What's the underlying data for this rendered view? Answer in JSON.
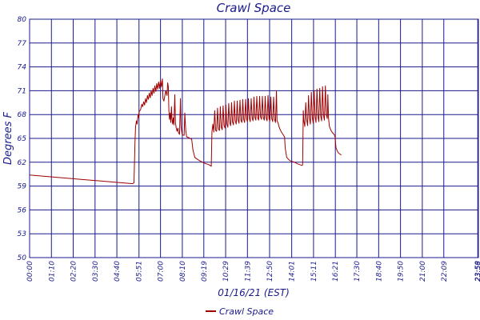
{
  "chart_data": {
    "type": "line",
    "title": "Crawl Space",
    "xlabel": "01/16/21 (EST)",
    "ylabel": "Degrees F",
    "ylim": [
      50,
      80
    ],
    "yticks": [
      "50",
      "53",
      "56",
      "59",
      "62",
      "65",
      "68",
      "71",
      "74",
      "77",
      "80"
    ],
    "xlim": [
      0,
      1440
    ],
    "xticks": [
      {
        "minute": 0,
        "label": "00:00"
      },
      {
        "minute": 70,
        "label": "01:10"
      },
      {
        "minute": 140,
        "label": "02:20"
      },
      {
        "minute": 210,
        "label": "03:30"
      },
      {
        "minute": 280,
        "label": "04:40"
      },
      {
        "minute": 351,
        "label": "05:51"
      },
      {
        "minute": 420,
        "label": "07:00"
      },
      {
        "minute": 490,
        "label": "08:10"
      },
      {
        "minute": 559,
        "label": "09:19"
      },
      {
        "minute": 629,
        "label": "10:29"
      },
      {
        "minute": 699,
        "label": "11:39"
      },
      {
        "minute": 770,
        "label": "12:50"
      },
      {
        "minute": 841,
        "label": "14:01"
      },
      {
        "minute": 911,
        "label": "15:11"
      },
      {
        "minute": 981,
        "label": "16:21"
      },
      {
        "minute": 1050,
        "label": "17:30"
      },
      {
        "minute": 1120,
        "label": "18:40"
      },
      {
        "minute": 1190,
        "label": "19:50"
      },
      {
        "minute": 1260,
        "label": "21:00"
      },
      {
        "minute": 1329,
        "label": "22:09"
      },
      {
        "minute": 1438,
        "label": "23:58"
      },
      {
        "minute": 1439,
        "label": "23:59"
      }
    ],
    "grid": true,
    "legend_position": "bottom",
    "series": [
      {
        "name": "Crawl Space",
        "color": "#a00000",
        "points": [
          [
            0,
            60.4
          ],
          [
            60,
            60.2
          ],
          [
            120,
            60.0
          ],
          [
            180,
            59.8
          ],
          [
            240,
            59.6
          ],
          [
            300,
            59.4
          ],
          [
            330,
            59.3
          ],
          [
            335,
            59.4
          ],
          [
            338,
            64.5
          ],
          [
            340,
            66.5
          ],
          [
            343,
            67.2
          ],
          [
            345,
            66.8
          ],
          [
            348,
            68.0
          ],
          [
            350,
            67.6
          ],
          [
            352,
            68.4
          ],
          [
            356,
            68.6
          ],
          [
            360,
            69.3
          ],
          [
            363,
            69.0
          ],
          [
            366,
            69.6
          ],
          [
            369,
            69.2
          ],
          [
            372,
            70.0
          ],
          [
            375,
            69.5
          ],
          [
            378,
            70.4
          ],
          [
            381,
            69.9
          ],
          [
            384,
            70.7
          ],
          [
            387,
            70.1
          ],
          [
            390,
            71.0
          ],
          [
            393,
            70.4
          ],
          [
            396,
            71.3
          ],
          [
            399,
            70.7
          ],
          [
            402,
            71.6
          ],
          [
            405,
            70.9
          ],
          [
            408,
            71.9
          ],
          [
            411,
            71.2
          ],
          [
            414,
            72.1
          ],
          [
            417,
            71.3
          ],
          [
            420,
            72.3
          ],
          [
            423,
            71.5
          ],
          [
            426,
            72.5
          ],
          [
            428,
            70.0
          ],
          [
            431,
            69.7
          ],
          [
            434,
            70.4
          ],
          [
            437,
            71.0
          ],
          [
            441,
            70.4
          ],
          [
            443,
            72.0
          ],
          [
            445,
            71.5
          ],
          [
            447,
            68.5
          ],
          [
            449,
            67.4
          ],
          [
            451,
            68.2
          ],
          [
            453,
            67.0
          ],
          [
            455,
            69.0
          ],
          [
            457,
            67.5
          ],
          [
            459,
            66.8
          ],
          [
            461,
            67.6
          ],
          [
            463,
            66.7
          ],
          [
            466,
            70.5
          ],
          [
            468,
            67.0
          ],
          [
            470,
            66.4
          ],
          [
            473,
            65.9
          ],
          [
            476,
            66.3
          ],
          [
            478,
            65.7
          ],
          [
            481,
            65.5
          ],
          [
            484,
            70.0
          ],
          [
            486,
            66.5
          ],
          [
            489,
            65.6
          ],
          [
            492,
            65.4
          ],
          [
            496,
            65.4
          ],
          [
            498,
            68.2
          ],
          [
            501,
            66.0
          ],
          [
            504,
            65.2
          ],
          [
            510,
            65.1
          ],
          [
            520,
            64.9
          ],
          [
            524,
            63.6
          ],
          [
            530,
            62.6
          ],
          [
            545,
            62.2
          ],
          [
            560,
            61.9
          ],
          [
            575,
            61.7
          ],
          [
            583,
            61.5
          ],
          [
            585,
            65.8
          ],
          [
            588,
            66.8
          ],
          [
            591,
            65.8
          ],
          [
            594,
            68.5
          ],
          [
            597,
            66.0
          ],
          [
            600,
            65.9
          ],
          [
            603,
            68.8
          ],
          [
            606,
            66.2
          ],
          [
            609,
            66.0
          ],
          [
            612,
            69.0
          ],
          [
            615,
            66.4
          ],
          [
            618,
            66.1
          ],
          [
            621,
            69.1
          ],
          [
            624,
            66.6
          ],
          [
            627,
            66.3
          ],
          [
            630,
            69.2
          ],
          [
            633,
            66.8
          ],
          [
            636,
            66.4
          ],
          [
            639,
            69.4
          ],
          [
            642,
            67.0
          ],
          [
            645,
            66.6
          ],
          [
            648,
            69.5
          ],
          [
            651,
            67.1
          ],
          [
            654,
            66.7
          ],
          [
            657,
            69.7
          ],
          [
            660,
            67.2
          ],
          [
            663,
            66.8
          ],
          [
            666,
            69.7
          ],
          [
            669,
            67.3
          ],
          [
            672,
            66.9
          ],
          [
            675,
            69.8
          ],
          [
            678,
            67.3
          ],
          [
            681,
            67.0
          ],
          [
            684,
            69.9
          ],
          [
            687,
            67.4
          ],
          [
            690,
            67.0
          ],
          [
            693,
            69.9
          ],
          [
            696,
            67.5
          ],
          [
            699,
            67.1
          ],
          [
            702,
            70.0
          ],
          [
            705,
            67.5
          ],
          [
            708,
            67.1
          ],
          [
            711,
            70.0
          ],
          [
            714,
            67.6
          ],
          [
            717,
            67.2
          ],
          [
            720,
            70.2
          ],
          [
            723,
            67.6
          ],
          [
            726,
            67.3
          ],
          [
            729,
            70.3
          ],
          [
            732,
            67.6
          ],
          [
            735,
            67.3
          ],
          [
            738,
            70.3
          ],
          [
            741,
            67.7
          ],
          [
            744,
            67.4
          ],
          [
            747,
            70.3
          ],
          [
            750,
            67.6
          ],
          [
            753,
            67.3
          ],
          [
            756,
            70.3
          ],
          [
            759,
            67.6
          ],
          [
            762,
            67.2
          ],
          [
            765,
            70.4
          ],
          [
            768,
            67.5
          ],
          [
            771,
            67.2
          ],
          [
            774,
            70.2
          ],
          [
            777,
            67.5
          ],
          [
            780,
            67.1
          ],
          [
            783,
            70.2
          ],
          [
            786,
            67.4
          ],
          [
            789,
            67.0
          ],
          [
            792,
            71.0
          ],
          [
            794,
            67.2
          ],
          [
            797,
            67.0
          ],
          [
            800,
            66.5
          ],
          [
            803,
            66.2
          ],
          [
            808,
            65.8
          ],
          [
            813,
            65.5
          ],
          [
            818,
            65.2
          ],
          [
            820,
            63.8
          ],
          [
            825,
            62.6
          ],
          [
            835,
            62.2
          ],
          [
            850,
            62.0
          ],
          [
            860,
            61.8
          ],
          [
            874,
            61.6
          ],
          [
            876,
            61.7
          ],
          [
            878,
            68.5
          ],
          [
            880,
            67.2
          ],
          [
            883,
            66.5
          ],
          [
            886,
            69.5
          ],
          [
            889,
            67.4
          ],
          [
            892,
            66.6
          ],
          [
            895,
            70.4
          ],
          [
            898,
            67.6
          ],
          [
            901,
            66.8
          ],
          [
            904,
            70.8
          ],
          [
            907,
            67.6
          ],
          [
            910,
            66.9
          ],
          [
            913,
            71.0
          ],
          [
            916,
            67.7
          ],
          [
            919,
            67.0
          ],
          [
            922,
            71.2
          ],
          [
            925,
            67.8
          ],
          [
            928,
            67.1
          ],
          [
            931,
            71.3
          ],
          [
            934,
            67.8
          ],
          [
            937,
            67.2
          ],
          [
            940,
            71.5
          ],
          [
            943,
            67.9
          ],
          [
            946,
            67.3
          ],
          [
            949,
            71.6
          ],
          [
            952,
            68.0
          ],
          [
            955,
            67.5
          ],
          [
            957,
            70.5
          ],
          [
            959,
            67.6
          ],
          [
            962,
            66.5
          ],
          [
            967,
            66.0
          ],
          [
            972,
            65.7
          ],
          [
            977,
            65.5
          ],
          [
            980,
            65.2
          ],
          [
            983,
            63.8
          ],
          [
            990,
            63.2
          ],
          [
            1000,
            62.9
          ]
        ]
      }
    ]
  }
}
